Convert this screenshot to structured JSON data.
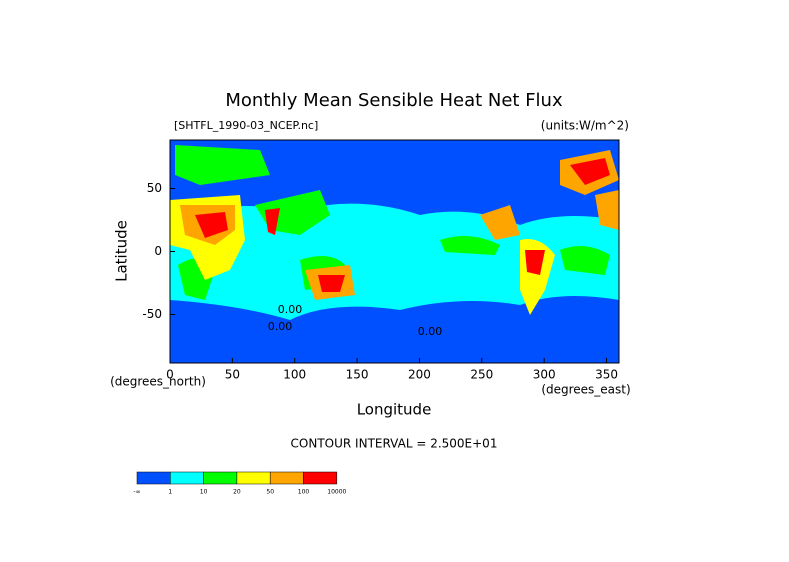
{
  "chart_data": {
    "type": "contour-map",
    "title": "Monthly Mean Sensible Heat Net Flux",
    "subtitle_left": "[SHTFL_1990-03_NCEP.nc]",
    "subtitle_right": "(units:W/m^2)",
    "x_label": "Longitude",
    "y_label": "Latitude",
    "x_units": "(degrees_east)",
    "y_units": "(degrees_north)",
    "xlim": [
      0,
      360
    ],
    "xticks": [
      0,
      50,
      100,
      150,
      200,
      250,
      300,
      350
    ],
    "ylim": [
      -88.5,
      88.5
    ],
    "yticks": [
      -50,
      0,
      50
    ],
    "annotation": "CONTOUR INTERVAL = 2.500E+01",
    "contour_labels": [
      "0.00",
      "0.00",
      "0.00"
    ],
    "colorbar": {
      "colors": [
        "#0050ff",
        "#00ffff",
        "#00ff00",
        "#ffff00",
        "#ffa500",
        "#ff0000"
      ],
      "labels": [
        "-∞",
        "1",
        "10",
        "20",
        "50",
        "100",
        "10000"
      ]
    }
  }
}
